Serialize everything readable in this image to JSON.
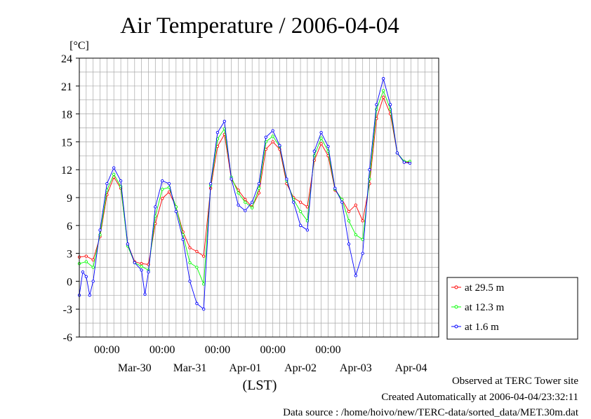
{
  "chart_data": {
    "type": "line",
    "title": "Air Temperature / 2006-04-04",
    "ylabel": "[°C]",
    "xlabel": "(LST)",
    "ylim": [
      -6,
      24
    ],
    "yticks": [
      -6,
      -3,
      0,
      3,
      6,
      9,
      12,
      15,
      18,
      21,
      24
    ],
    "x_start": "2006-03-29T12:00",
    "x_end": "2006-04-05T00:00",
    "time_ticks": [
      {
        "time": "2006-03-30T00:00",
        "label": "00:00"
      },
      {
        "time": "2006-03-31T00:00",
        "label": "00:00"
      },
      {
        "time": "2006-04-01T00:00",
        "label": "00:00"
      },
      {
        "time": "2006-04-02T00:00",
        "label": "00:00"
      },
      {
        "time": "2006-04-03T00:00",
        "label": "00:00"
      }
    ],
    "date_labels": [
      {
        "time": "2006-03-30T12:00",
        "label": "Mar-30"
      },
      {
        "time": "2006-03-31T12:00",
        "label": "Mar-31"
      },
      {
        "time": "2006-04-01T12:00",
        "label": "Apr-01"
      },
      {
        "time": "2006-04-02T12:00",
        "label": "Apr-02"
      },
      {
        "time": "2006-04-03T12:00",
        "label": "Apr-03"
      },
      {
        "time": "2006-04-04T12:00",
        "label": "Apr-04"
      }
    ],
    "grid": true,
    "legend_position": "right",
    "series": [
      {
        "name": "at 29.5 m",
        "color": "#ff0000",
        "points": [
          [
            "2006-03-29T12:00",
            2.6
          ],
          [
            "2006-03-29T15:00",
            2.7
          ],
          [
            "2006-03-29T18:00",
            2.3
          ],
          [
            "2006-03-29T21:00",
            4.8
          ],
          [
            "2006-03-30T00:00",
            9.3
          ],
          [
            "2006-03-30T03:00",
            11.2
          ],
          [
            "2006-03-30T06:00",
            10.0
          ],
          [
            "2006-03-30T09:00",
            4.0
          ],
          [
            "2006-03-30T12:00",
            2.1
          ],
          [
            "2006-03-30T15:00",
            1.9
          ],
          [
            "2006-03-30T18:00",
            1.8
          ],
          [
            "2006-03-30T21:00",
            6.2
          ],
          [
            "2006-03-31T00:00",
            8.9
          ],
          [
            "2006-03-31T03:00",
            9.6
          ],
          [
            "2006-03-31T06:00",
            8.0
          ],
          [
            "2006-03-31T09:00",
            5.3
          ],
          [
            "2006-03-31T12:00",
            3.6
          ],
          [
            "2006-03-31T15:00",
            3.2
          ],
          [
            "2006-03-31T18:00",
            2.7
          ],
          [
            "2006-03-31T21:00",
            10.0
          ],
          [
            "2006-04-01T00:00",
            14.5
          ],
          [
            "2006-04-01T03:00",
            15.8
          ],
          [
            "2006-04-01T06:00",
            11.0
          ],
          [
            "2006-04-01T09:00",
            9.8
          ],
          [
            "2006-04-01T12:00",
            8.8
          ],
          [
            "2006-04-01T15:00",
            8.0
          ],
          [
            "2006-04-01T18:00",
            9.5
          ],
          [
            "2006-04-01T21:00",
            14.2
          ],
          [
            "2006-04-02T00:00",
            15.0
          ],
          [
            "2006-04-02T03:00",
            14.2
          ],
          [
            "2006-04-02T06:00",
            10.5
          ],
          [
            "2006-04-02T09:00",
            9.0
          ],
          [
            "2006-04-02T12:00",
            8.5
          ],
          [
            "2006-04-02T15:00",
            8.0
          ],
          [
            "2006-04-02T18:00",
            13.0
          ],
          [
            "2006-04-02T21:00",
            14.8
          ],
          [
            "2006-04-03T00:00",
            13.5
          ],
          [
            "2006-04-03T03:00",
            9.8
          ],
          [
            "2006-04-03T06:00",
            8.8
          ],
          [
            "2006-04-03T09:00",
            7.5
          ],
          [
            "2006-04-03T12:00",
            8.2
          ],
          [
            "2006-04-03T15:00",
            6.5
          ],
          [
            "2006-04-03T18:00",
            10.5
          ],
          [
            "2006-04-03T21:00",
            17.5
          ],
          [
            "2006-04-04T00:00",
            19.8
          ],
          [
            "2006-04-04T03:00",
            18.0
          ],
          [
            "2006-04-04T06:00",
            13.8
          ],
          [
            "2006-04-04T09:00",
            12.8
          ],
          [
            "2006-04-04T11:30",
            12.8
          ]
        ]
      },
      {
        "name": "at 12.3 m",
        "color": "#00ff00",
        "points": [
          [
            "2006-03-29T12:00",
            1.9
          ],
          [
            "2006-03-29T15:00",
            2.1
          ],
          [
            "2006-03-29T18:00",
            1.5
          ],
          [
            "2006-03-29T21:00",
            5.0
          ],
          [
            "2006-03-30T00:00",
            9.8
          ],
          [
            "2006-03-30T03:00",
            11.5
          ],
          [
            "2006-03-30T06:00",
            10.2
          ],
          [
            "2006-03-30T09:00",
            3.8
          ],
          [
            "2006-03-30T12:00",
            2.0
          ],
          [
            "2006-03-30T15:00",
            1.6
          ],
          [
            "2006-03-30T18:00",
            1.2
          ],
          [
            "2006-03-30T21:00",
            7.0
          ],
          [
            "2006-03-31T00:00",
            9.9
          ],
          [
            "2006-03-31T03:00",
            10.1
          ],
          [
            "2006-03-31T06:00",
            8.0
          ],
          [
            "2006-03-31T09:00",
            5.0
          ],
          [
            "2006-03-31T12:00",
            2.0
          ],
          [
            "2006-03-31T15:00",
            1.5
          ],
          [
            "2006-03-31T18:00",
            -0.3
          ],
          [
            "2006-03-31T21:00",
            10.3
          ],
          [
            "2006-04-01T00:00",
            15.3
          ],
          [
            "2006-04-01T03:00",
            16.4
          ],
          [
            "2006-04-01T06:00",
            11.2
          ],
          [
            "2006-04-01T09:00",
            9.5
          ],
          [
            "2006-04-01T12:00",
            8.5
          ],
          [
            "2006-04-01T15:00",
            7.9
          ],
          [
            "2006-04-01T18:00",
            10.0
          ],
          [
            "2006-04-01T21:00",
            15.0
          ],
          [
            "2006-04-02T00:00",
            15.6
          ],
          [
            "2006-04-02T03:00",
            14.5
          ],
          [
            "2006-04-02T06:00",
            10.8
          ],
          [
            "2006-04-02T09:00",
            8.8
          ],
          [
            "2006-04-02T12:00",
            7.5
          ],
          [
            "2006-04-02T15:00",
            6.5
          ],
          [
            "2006-04-02T18:00",
            13.5
          ],
          [
            "2006-04-02T21:00",
            15.4
          ],
          [
            "2006-04-03T00:00",
            14.0
          ],
          [
            "2006-04-03T03:00",
            9.9
          ],
          [
            "2006-04-03T06:00",
            8.8
          ],
          [
            "2006-04-03T09:00",
            6.5
          ],
          [
            "2006-04-03T12:00",
            5.0
          ],
          [
            "2006-04-03T15:00",
            4.5
          ],
          [
            "2006-04-03T18:00",
            11.0
          ],
          [
            "2006-04-03T21:00",
            18.5
          ],
          [
            "2006-04-04T00:00",
            20.5
          ],
          [
            "2006-04-04T03:00",
            18.5
          ],
          [
            "2006-04-04T06:00",
            13.8
          ],
          [
            "2006-04-04T09:00",
            12.9
          ],
          [
            "2006-04-04T11:30",
            12.9
          ]
        ]
      },
      {
        "name": "at 1.6 m",
        "color": "#0000ff",
        "points": [
          [
            "2006-03-29T12:00",
            -1.5
          ],
          [
            "2006-03-29T13:30",
            1.0
          ],
          [
            "2006-03-29T15:00",
            0.5
          ],
          [
            "2006-03-29T16:30",
            -1.5
          ],
          [
            "2006-03-29T18:00",
            0.0
          ],
          [
            "2006-03-29T21:00",
            5.5
          ],
          [
            "2006-03-30T00:00",
            10.5
          ],
          [
            "2006-03-30T03:00",
            12.2
          ],
          [
            "2006-03-30T06:00",
            10.8
          ],
          [
            "2006-03-30T09:00",
            4.0
          ],
          [
            "2006-03-30T12:00",
            2.0
          ],
          [
            "2006-03-30T15:00",
            1.2
          ],
          [
            "2006-03-30T16:30",
            -1.4
          ],
          [
            "2006-03-30T18:00",
            1.0
          ],
          [
            "2006-03-30T21:00",
            8.0
          ],
          [
            "2006-03-31T00:00",
            10.8
          ],
          [
            "2006-03-31T03:00",
            10.5
          ],
          [
            "2006-03-31T06:00",
            7.5
          ],
          [
            "2006-03-31T09:00",
            4.5
          ],
          [
            "2006-03-31T12:00",
            0.0
          ],
          [
            "2006-03-31T15:00",
            -2.4
          ],
          [
            "2006-03-31T18:00",
            -3.0
          ],
          [
            "2006-03-31T21:00",
            10.5
          ],
          [
            "2006-04-01T00:00",
            16.0
          ],
          [
            "2006-04-01T03:00",
            17.2
          ],
          [
            "2006-04-01T06:00",
            11.0
          ],
          [
            "2006-04-01T09:00",
            8.2
          ],
          [
            "2006-04-01T12:00",
            7.6
          ],
          [
            "2006-04-01T15:00",
            8.5
          ],
          [
            "2006-04-01T18:00",
            10.5
          ],
          [
            "2006-04-01T21:00",
            15.5
          ],
          [
            "2006-04-02T00:00",
            16.2
          ],
          [
            "2006-04-02T03:00",
            14.6
          ],
          [
            "2006-04-02T06:00",
            11.0
          ],
          [
            "2006-04-02T09:00",
            8.5
          ],
          [
            "2006-04-02T12:00",
            6.0
          ],
          [
            "2006-04-02T15:00",
            5.5
          ],
          [
            "2006-04-02T18:00",
            14.0
          ],
          [
            "2006-04-02T21:00",
            16.0
          ],
          [
            "2006-04-03T00:00",
            14.5
          ],
          [
            "2006-04-03T03:00",
            10.0
          ],
          [
            "2006-04-03T06:00",
            8.5
          ],
          [
            "2006-04-03T09:00",
            4.0
          ],
          [
            "2006-04-03T12:00",
            0.6
          ],
          [
            "2006-04-03T15:00",
            3.0
          ],
          [
            "2006-04-03T18:00",
            12.0
          ],
          [
            "2006-04-03T21:00",
            19.0
          ],
          [
            "2006-04-04T00:00",
            21.8
          ],
          [
            "2006-04-04T03:00",
            19.0
          ],
          [
            "2006-04-04T06:00",
            13.8
          ],
          [
            "2006-04-04T09:00",
            12.8
          ],
          [
            "2006-04-04T11:30",
            12.7
          ]
        ]
      }
    ]
  },
  "footer": {
    "site": "Observed at TERC Tower site",
    "created": "Created Automatically at 2006-04-04/23:32:11",
    "source": "Data source : /home/hoivo/new/TERC-data/sorted_data/MET.30m.dat"
  }
}
